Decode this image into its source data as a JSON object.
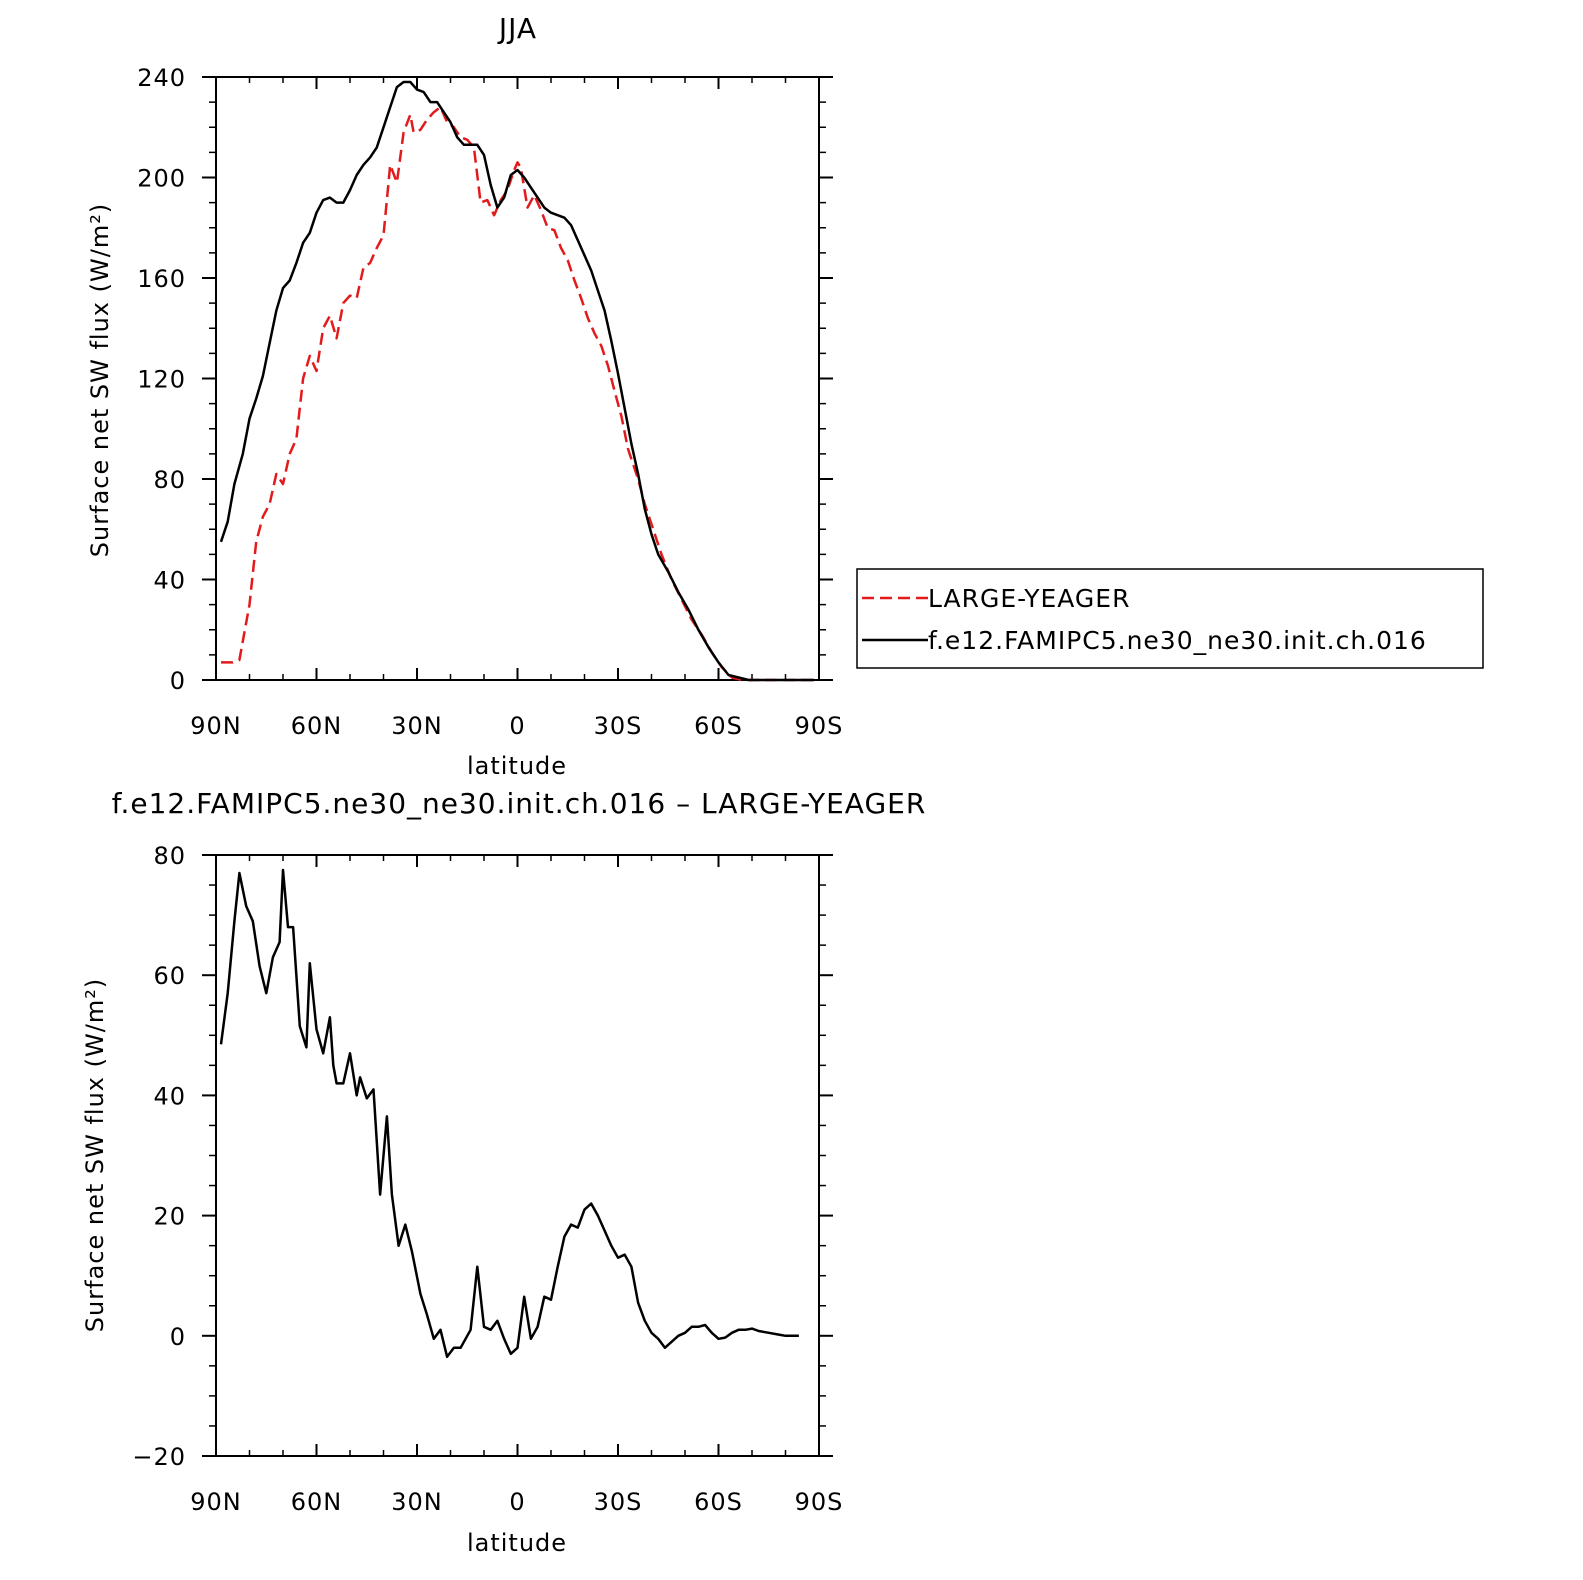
{
  "chart_data": [
    {
      "type": "line",
      "title": "JJA",
      "xlabel": "latitude",
      "ylabel": "Surface net SW flux (W/m²)",
      "xlim": [
        90,
        -90
      ],
      "ylim": [
        0,
        240
      ],
      "yticks": [
        0,
        40,
        80,
        120,
        160,
        200,
        240
      ],
      "xticks": [
        90,
        60,
        30,
        0,
        -30,
        -60,
        -90
      ],
      "xticklabels": [
        "90N",
        "60N",
        "30N",
        "0",
        "30S",
        "60S",
        "90S"
      ],
      "grid": false,
      "legend": {
        "placement": "right",
        "entries": [
          "LARGE-YEAGER",
          "f.e12.FAMIPC5.ne30_ne30.init.ch.016"
        ]
      },
      "series": [
        {
          "name": "LARGE-YEAGER",
          "color": "#e31a1c",
          "dash": "dashed",
          "points": [
            [
              88.5,
              7
            ],
            [
              85,
              7
            ],
            [
              83,
              8
            ],
            [
              80,
              30
            ],
            [
              78,
              55
            ],
            [
              76,
              65
            ],
            [
              74,
              70
            ],
            [
              72,
              82
            ],
            [
              70,
              78
            ],
            [
              68,
              90
            ],
            [
              66,
              96
            ],
            [
              64,
              120
            ],
            [
              62,
              129
            ],
            [
              60,
              123
            ],
            [
              58,
              140
            ],
            [
              56,
              145
            ],
            [
              54,
              136
            ],
            [
              52,
              150
            ],
            [
              50,
              153
            ],
            [
              48,
              152
            ],
            [
              46,
              164
            ],
            [
              44,
              166
            ],
            [
              42,
              172
            ],
            [
              40,
              177
            ],
            [
              38,
              205
            ],
            [
              36,
              198
            ],
            [
              34,
              218
            ],
            [
              32,
              225
            ],
            [
              31,
              218
            ],
            [
              29,
              219
            ],
            [
              27,
              223
            ],
            [
              25,
              226
            ],
            [
              23,
              228
            ],
            [
              21,
              222
            ],
            [
              19,
              220
            ],
            [
              17,
              216
            ],
            [
              15,
              215
            ],
            [
              13,
              212
            ],
            [
              11,
              190
            ],
            [
              9,
              191
            ],
            [
              7,
              185
            ],
            [
              5,
              191
            ],
            [
              3,
              195
            ],
            [
              1,
              203
            ],
            [
              0,
              206
            ],
            [
              -1,
              204
            ],
            [
              -3,
              188
            ],
            [
              -5,
              193
            ],
            [
              -7,
              187
            ],
            [
              -9,
              180
            ],
            [
              -11,
              179
            ],
            [
              -13,
              172
            ],
            [
              -15,
              167
            ],
            [
              -17,
              159
            ],
            [
              -19,
              152
            ],
            [
              -21,
              144
            ],
            [
              -23,
              138
            ],
            [
              -25,
              133
            ],
            [
              -27,
              125
            ],
            [
              -29,
              115
            ],
            [
              -31,
              105
            ],
            [
              -33,
              92
            ],
            [
              -36,
              80
            ],
            [
              -38,
              70
            ],
            [
              -40,
              62
            ],
            [
              -43,
              50
            ],
            [
              -46,
              40
            ],
            [
              -49,
              32
            ],
            [
              -52,
              24
            ],
            [
              -55,
              18
            ],
            [
              -58,
              11
            ],
            [
              -61,
              5
            ],
            [
              -64,
              1
            ],
            [
              -67,
              0
            ],
            [
              -70,
              0
            ],
            [
              -75,
              0
            ],
            [
              -80,
              0
            ],
            [
              -85,
              0
            ],
            [
              -88.5,
              0
            ]
          ]
        },
        {
          "name": "f.e12.FAMIPC5.ne30_ne30.init.ch.016",
          "color": "#000000",
          "dash": "solid",
          "points": [
            [
              88.5,
              55
            ],
            [
              86.5,
              63
            ],
            [
              84.5,
              78
            ],
            [
              82,
              90
            ],
            [
              80,
              104
            ],
            [
              78,
              112
            ],
            [
              76,
              121
            ],
            [
              74,
              134
            ],
            [
              72,
              147
            ],
            [
              70,
              156
            ],
            [
              68,
              159
            ],
            [
              66,
              166
            ],
            [
              64,
              174
            ],
            [
              62,
              178
            ],
            [
              60,
              186
            ],
            [
              58,
              191
            ],
            [
              56,
              192
            ],
            [
              54,
              190
            ],
            [
              52,
              190
            ],
            [
              50,
              195
            ],
            [
              48,
              201
            ],
            [
              46,
              205
            ],
            [
              44,
              208
            ],
            [
              42,
              212
            ],
            [
              40,
              220
            ],
            [
              38,
              228
            ],
            [
              36,
              236
            ],
            [
              34,
              238
            ],
            [
              32,
              238
            ],
            [
              30,
              235
            ],
            [
              28,
              234
            ],
            [
              26,
              230
            ],
            [
              24,
              230
            ],
            [
              22,
              226
            ],
            [
              20,
              222
            ],
            [
              18,
              216
            ],
            [
              16,
              213
            ],
            [
              14,
              213
            ],
            [
              12,
              213
            ],
            [
              10,
              209
            ],
            [
              8,
              197
            ],
            [
              6,
              188
            ],
            [
              4,
              192
            ],
            [
              2,
              201
            ],
            [
              0,
              203
            ],
            [
              -2,
              200
            ],
            [
              -4,
              196
            ],
            [
              -6,
              192
            ],
            [
              -8,
              188
            ],
            [
              -10,
              186
            ],
            [
              -12,
              185
            ],
            [
              -14,
              184
            ],
            [
              -16,
              181
            ],
            [
              -18,
              175
            ],
            [
              -20,
              169
            ],
            [
              -22,
              163
            ],
            [
              -24,
              155
            ],
            [
              -26,
              147
            ],
            [
              -28,
              135
            ],
            [
              -30,
              122
            ],
            [
              -32,
              108
            ],
            [
              -34,
              94
            ],
            [
              -36,
              82
            ],
            [
              -38,
              68
            ],
            [
              -40,
              58
            ],
            [
              -42,
              50
            ],
            [
              -45,
              43
            ],
            [
              -48,
              35
            ],
            [
              -51,
              28
            ],
            [
              -54,
              20
            ],
            [
              -57,
              13
            ],
            [
              -60,
              7
            ],
            [
              -63,
              2
            ],
            [
              -66,
              1
            ],
            [
              -69,
              0
            ],
            [
              -75,
              0
            ],
            [
              -80,
              0
            ],
            [
              -85,
              0
            ],
            [
              -88.5,
              0
            ]
          ]
        }
      ]
    },
    {
      "type": "line",
      "title": "f.e12.FAMIPC5.ne30_ne30.init.ch.016 – LARGE-YEAGER",
      "xlabel": "latitude",
      "ylabel": "Surface net SW flux (W/m²)",
      "xlim": [
        90,
        -90
      ],
      "ylim": [
        -20,
        80
      ],
      "yticks": [
        -20,
        0,
        20,
        40,
        60,
        80
      ],
      "xticks": [
        90,
        60,
        30,
        0,
        -30,
        -60,
        -90
      ],
      "xticklabels": [
        "90N",
        "60N",
        "30N",
        "0",
        "30S",
        "60S",
        "90S"
      ],
      "grid": false,
      "series": [
        {
          "color": "#000000",
          "dash": "solid",
          "points": [
            [
              88.5,
              48.5
            ],
            [
              86.5,
              57
            ],
            [
              84.5,
              69
            ],
            [
              83,
              77
            ],
            [
              81,
              71.5
            ],
            [
              79,
              69
            ],
            [
              77,
              61.5
            ],
            [
              75,
              57
            ],
            [
              73,
              63
            ],
            [
              71,
              65.5
            ],
            [
              70,
              77.5
            ],
            [
              68.5,
              68
            ],
            [
              67,
              68
            ],
            [
              65,
              51.5
            ],
            [
              63,
              48
            ],
            [
              62,
              62
            ],
            [
              60,
              51
            ],
            [
              58,
              47
            ],
            [
              56,
              53
            ],
            [
              55,
              45
            ],
            [
              54,
              42
            ],
            [
              52,
              42
            ],
            [
              50,
              47
            ],
            [
              48,
              40
            ],
            [
              47,
              43
            ],
            [
              45,
              39.5
            ],
            [
              43,
              41
            ],
            [
              41,
              23.5
            ],
            [
              39,
              36.5
            ],
            [
              37.5,
              23.5
            ],
            [
              35.5,
              15
            ],
            [
              33.5,
              18.5
            ],
            [
              31.5,
              14
            ],
            [
              29,
              7
            ],
            [
              27,
              3.5
            ],
            [
              25,
              -0.5
            ],
            [
              23,
              1
            ],
            [
              21,
              -3.5
            ],
            [
              19,
              -2
            ],
            [
              17,
              -2
            ],
            [
              14,
              1
            ],
            [
              12,
              11.5
            ],
            [
              10,
              1.5
            ],
            [
              8,
              1
            ],
            [
              6,
              2.5
            ],
            [
              4,
              -0.5
            ],
            [
              2,
              -3
            ],
            [
              0,
              -2
            ],
            [
              -2,
              6.5
            ],
            [
              -4,
              -0.5
            ],
            [
              -6,
              1.5
            ],
            [
              -8,
              6.5
            ],
            [
              -10,
              6
            ],
            [
              -12,
              11.5
            ],
            [
              -14,
              16.5
            ],
            [
              -16,
              18.5
            ],
            [
              -18,
              18
            ],
            [
              -20,
              21
            ],
            [
              -22,
              22
            ],
            [
              -24,
              20
            ],
            [
              -26,
              17.5
            ],
            [
              -28,
              15
            ],
            [
              -30,
              13
            ],
            [
              -32,
              13.5
            ],
            [
              -34,
              11.5
            ],
            [
              -36,
              5.5
            ],
            [
              -38,
              2.5
            ],
            [
              -40,
              0.5
            ],
            [
              -42,
              -0.5
            ],
            [
              -44,
              -2
            ],
            [
              -46,
              -1
            ],
            [
              -48,
              0
            ],
            [
              -50,
              0.5
            ],
            [
              -52,
              1.5
            ],
            [
              -54,
              1.5
            ],
            [
              -56,
              1.8
            ],
            [
              -58,
              0.5
            ],
            [
              -60,
              -0.5
            ],
            [
              -62,
              -0.3
            ],
            [
              -64,
              0.5
            ],
            [
              -66,
              1
            ],
            [
              -68,
              1
            ],
            [
              -70,
              1.2
            ],
            [
              -72,
              0.8
            ],
            [
              -75,
              0.5
            ],
            [
              -78,
              0.2
            ],
            [
              -80,
              0
            ],
            [
              -82,
              0
            ],
            [
              -84,
              0
            ]
          ]
        }
      ]
    }
  ]
}
